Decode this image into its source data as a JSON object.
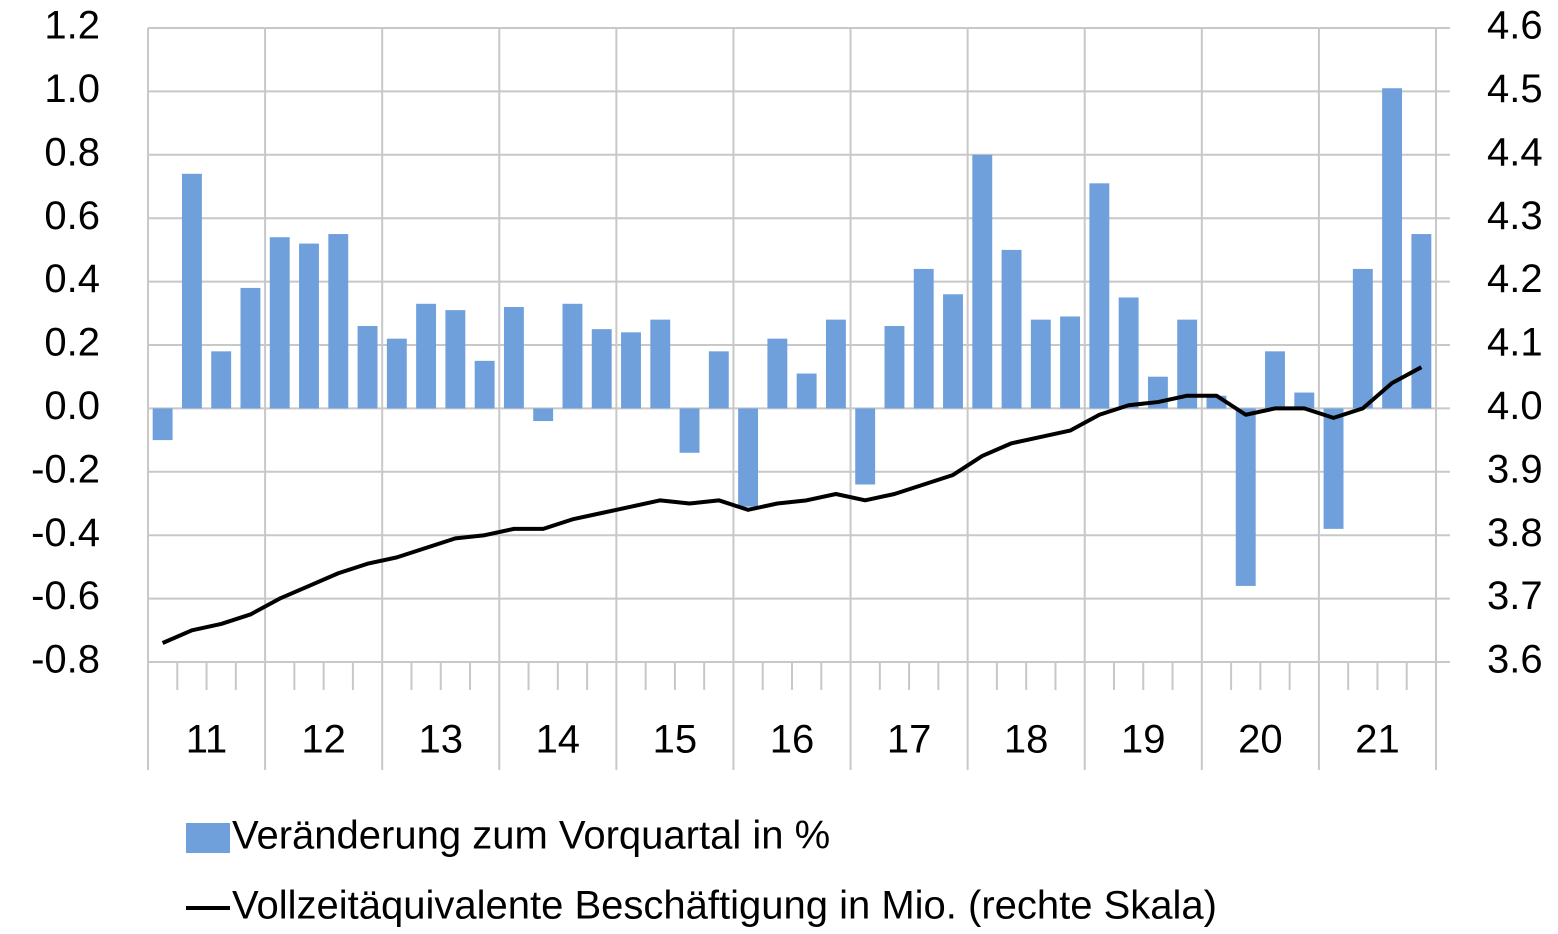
{
  "chart_data": {
    "type": "bar_line",
    "categories": [
      null,
      "11",
      null,
      null,
      null,
      "12",
      null,
      null,
      null,
      "13",
      null,
      null,
      null,
      "14",
      null,
      null,
      null,
      "15",
      null,
      null,
      null,
      "16",
      null,
      null,
      null,
      "17",
      null,
      null,
      null,
      "18",
      null,
      null,
      null,
      "19",
      null,
      null,
      null,
      "20",
      null,
      null,
      null,
      "21",
      null,
      null
    ],
    "series": [
      {
        "name": "Veränderung zum Vorquartal in %",
        "type": "bar",
        "color": "#6fa0dc",
        "values": [
          -0.1,
          0.74,
          0.18,
          0.38,
          0.54,
          0.52,
          0.55,
          0.26,
          0.22,
          0.33,
          0.31,
          0.15,
          0.32,
          -0.04,
          0.33,
          0.25,
          0.24,
          0.28,
          -0.14,
          0.18,
          -0.31,
          0.22,
          0.11,
          0.28,
          -0.24,
          0.26,
          0.44,
          0.36,
          0.8,
          0.5,
          0.28,
          0.29,
          0.71,
          0.35,
          0.1,
          0.28,
          0.04,
          -0.56,
          0.18,
          0.05,
          -0.38,
          0.44,
          1.01,
          0.55
        ]
      },
      {
        "name": "Vollzeitäquivalente Beschäftigung in Mio. (rechte Skala)",
        "type": "line",
        "axis": "y2",
        "color": "#000000",
        "values": [
          3.63,
          3.65,
          3.66,
          3.675,
          3.7,
          3.72,
          3.74,
          3.755,
          3.765,
          3.78,
          3.795,
          3.8,
          3.81,
          3.81,
          3.825,
          3.835,
          3.845,
          3.855,
          3.85,
          3.855,
          3.84,
          3.85,
          3.855,
          3.865,
          3.855,
          3.865,
          3.88,
          3.895,
          3.925,
          3.945,
          3.955,
          3.965,
          3.99,
          4.005,
          4.01,
          4.02,
          4.02,
          3.99,
          4.0,
          4.0,
          3.985,
          4.0,
          4.04,
          4.065
        ]
      }
    ],
    "ylim": [
      -0.8,
      1.2
    ],
    "yticks": [
      {
        "value": 1.2,
        "label": "1.2"
      },
      {
        "value": 1,
        "label": "1.0"
      },
      0.8,
      0.6,
      0.4,
      0.2,
      {
        "value": 0,
        "label": "0.0"
      },
      -0.2,
      -0.4,
      -0.6,
      -0.8
    ],
    "y2lim": [
      3.6,
      4.6
    ],
    "y2ticks": [
      4.6,
      4.5,
      4.4,
      4.3,
      4.2,
      4.1,
      {
        "value": 4,
        "label": "4.0"
      },
      3.9,
      3.8,
      3.7,
      3.6
    ],
    "grid": true,
    "legend": "bottom"
  }
}
